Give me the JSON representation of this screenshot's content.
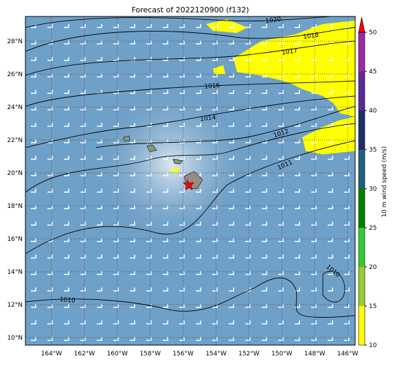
{
  "title": "Forecast of 2022120900 (f132)",
  "lat_labels": [
    "28°N",
    "26°N",
    "24°N",
    "22°N",
    "20°N",
    "18°N",
    "16°N",
    "14°N",
    "12°N",
    "10°N"
  ],
  "lon_labels": [
    "164°W",
    "162°W",
    "160°W",
    "158°W",
    "156°W",
    "154°W",
    "152°W",
    "150°W",
    "148°W",
    "146°W"
  ],
  "contour_labels": [
    "1020",
    "1018",
    "1017",
    "1016",
    "1014",
    "1012",
    "1011",
    "1010",
    "1010"
  ],
  "colorbar": {
    "label": "10 m wind speed (m/s)",
    "range": [
      10,
      50
    ],
    "ticks": [
      10,
      15,
      20,
      25,
      30,
      35,
      40,
      45,
      50
    ],
    "colors": [
      "#ffff00",
      "#9acd32",
      "#32cd32",
      "#008000",
      "#20607f",
      "#1c2f66",
      "#5a2a9a",
      "#9a2aa8"
    ],
    "extend_color": "#ff0000"
  }
}
